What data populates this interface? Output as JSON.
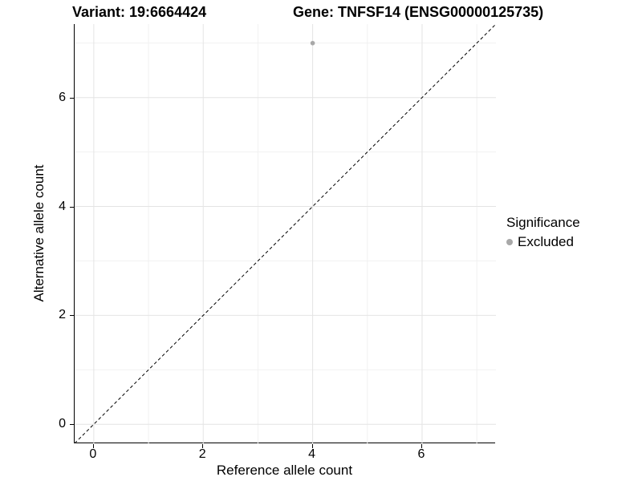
{
  "titles": {
    "variant": "Variant: 19:6664424",
    "gene": "Gene: TNFSF14 (ENSG00000125735)"
  },
  "colors": {
    "background": "#ffffff",
    "axis_line": "#000000",
    "grid_major": "#e4e4e4",
    "grid_minor": "#f1f1f1",
    "identity_line": "#000000",
    "point": "#a8a8a8",
    "text": "#000000"
  },
  "legend": {
    "title": "Significance",
    "entries": [
      {
        "label": "Excluded",
        "color": "#a8a8a8"
      }
    ]
  },
  "chart_data": {
    "type": "scatter",
    "title": "Variant: 19:6664424   Gene: TNFSF14 (ENSG00000125735)",
    "xlabel": "Reference allele count",
    "ylabel": "Alternative allele count",
    "xlim": [
      -0.35,
      7.35
    ],
    "ylim": [
      -0.35,
      7.35
    ],
    "x_ticks": [
      0,
      2,
      4,
      6
    ],
    "y_ticks": [
      0,
      2,
      4,
      6
    ],
    "x_minor": [
      1,
      3,
      5,
      7
    ],
    "y_minor": [
      1,
      3,
      5,
      7
    ],
    "grid": true,
    "points": [
      {
        "x": 4,
        "y": 7,
        "series": "Excluded",
        "color": "#a8a8a8",
        "radius": 2.8
      }
    ],
    "reference_line": {
      "type": "identity",
      "from": -0.35,
      "to": 7.35,
      "style": "dashed",
      "color": "#000000"
    },
    "legend_position": "right"
  }
}
